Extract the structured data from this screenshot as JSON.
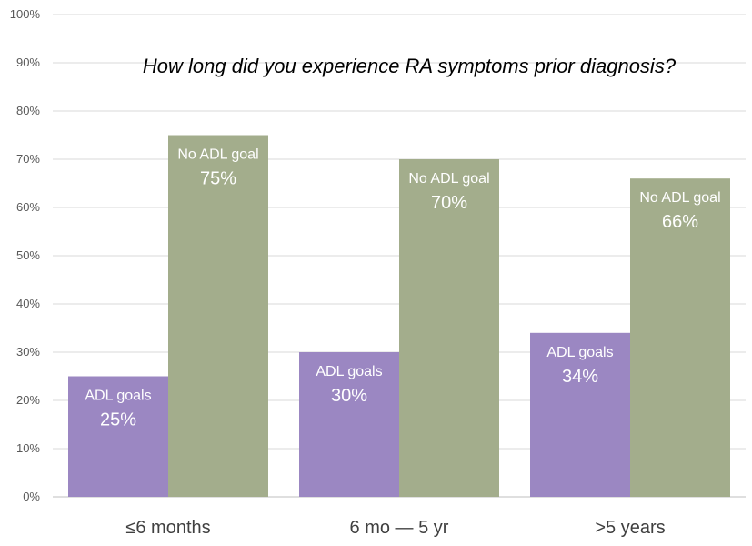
{
  "chart_data": {
    "type": "bar",
    "title": "How long did you experience RA symptoms prior diagnosis?",
    "categories": [
      "≤6 months",
      "6 mo — 5 yr",
      ">5 years"
    ],
    "series": [
      {
        "name": "ADL goals",
        "color": "#9b87c2",
        "values": [
          25,
          30,
          34
        ],
        "labels": [
          "25%",
          "30%",
          "34%"
        ]
      },
      {
        "name": "No ADL goal",
        "color": "#a3ad8c",
        "values": [
          75,
          70,
          66
        ],
        "labels": [
          "75%",
          "70%",
          "66%"
        ]
      }
    ],
    "ylim": [
      0,
      100
    ],
    "yticks": [
      0,
      10,
      20,
      30,
      40,
      50,
      60,
      70,
      80,
      90,
      100
    ],
    "ytick_labels": [
      "0%",
      "10%",
      "20%",
      "30%",
      "40%",
      "50%",
      "60%",
      "70%",
      "80%",
      "90%",
      "100%"
    ],
    "grid": true,
    "legend": "none",
    "xlabel": "",
    "ylabel": ""
  }
}
